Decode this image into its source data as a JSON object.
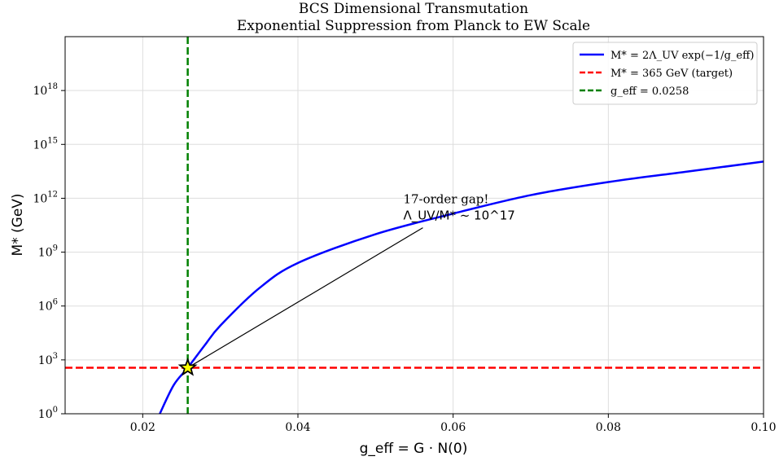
{
  "chart_data": {
    "type": "line",
    "title": "BCS Dimensional Transmutation",
    "subtitle": "Exponential Suppression from Planck to EW Scale",
    "xlabel": "g_eff = G · N(0)",
    "ylabel": "M* (GeV)",
    "x_scale": "linear",
    "y_scale": "log",
    "xlim": [
      0.01,
      0.1
    ],
    "ylim": [
      1,
      1e+21
    ],
    "x_ticks": [
      0.02,
      0.04,
      0.06,
      0.08,
      0.1
    ],
    "x_tick_labels": [
      "0.02",
      "0.04",
      "0.06",
      "0.08",
      "0.10"
    ],
    "y_ticks_exponent": [
      0,
      3,
      6,
      9,
      12,
      15,
      18
    ],
    "y_tick_labels": [
      "10",
      "10",
      "10",
      "10",
      "10",
      "10",
      "10"
    ],
    "y_tick_superscripts": [
      "0",
      "3",
      "6",
      "9",
      "12",
      "15",
      "18"
    ],
    "grid": true,
    "legend_position": "top-right",
    "legend": [
      {
        "label": "M* = 2Λ_UV exp(−1/g_eff)",
        "color": "#0000ff",
        "style": "solid"
      },
      {
        "label": "M* = 365 GeV (target)",
        "color": "#ff0000",
        "style": "dashed"
      },
      {
        "label": "g_eff = 0.0258",
        "color": "#008000",
        "style": "dashed"
      }
    ],
    "series": [
      {
        "name": "M* = 2Λ_UV exp(−1/g_eff)",
        "color": "#0000ff",
        "x": [
          0.0222,
          0.024,
          0.0258,
          0.028,
          0.03,
          0.035,
          0.04,
          0.05,
          0.06,
          0.07,
          0.08,
          0.09,
          0.1
        ],
        "y": [
          1,
          40,
          365,
          6600.0,
          81000.0,
          9700000.0,
          250000000.0,
          10000000000.0,
          140000000000.0,
          1500000000000.0,
          8000000000000.0,
          30000000000000.0,
          110000000000000.0
        ]
      }
    ],
    "hlines": [
      {
        "y": 365,
        "label": "M* = 365 GeV (target)",
        "color": "#ff0000"
      }
    ],
    "vlines": [
      {
        "x": 0.0258,
        "label": "g_eff = 0.0258",
        "color": "#008000"
      }
    ],
    "marker": {
      "x": 0.0258,
      "y": 365,
      "shape": "star",
      "fill": "#ffff00",
      "edge": "#000000"
    },
    "annotation": {
      "line1": "17-order gap!",
      "line2": "Λ_UV/M* ~ 10^17",
      "text_x": 0.054,
      "text_y": 80000000000.0,
      "arrow_to_x": 0.0258,
      "arrow_to_y": 365
    }
  }
}
